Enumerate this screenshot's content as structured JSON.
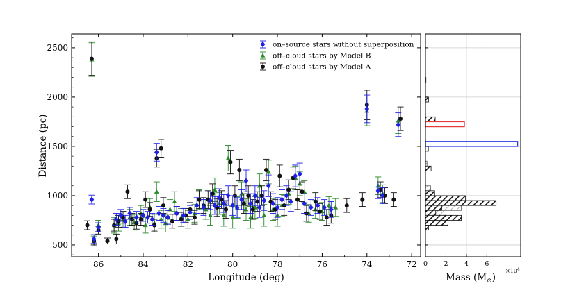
{
  "chart_data": [
    {
      "type": "scatter",
      "xlabel": "Longitude (deg)",
      "ylabel": "Distance (pc)",
      "xlim": [
        87.2,
        71.6
      ],
      "ylim": [
        380,
        2640
      ],
      "xticks": [
        86,
        84,
        82,
        80,
        78,
        76,
        74,
        72
      ],
      "xtick_labels": [
        "86",
        "84",
        "82",
        "80",
        "78",
        "76",
        "74",
        "72"
      ],
      "yticks": [
        500,
        1000,
        1500,
        2000,
        2500
      ],
      "ytick_labels": [
        "500",
        "1000",
        "1500",
        "2000",
        "2500"
      ],
      "legend_position": "top-right",
      "series": [
        {
          "name": "on–source stars without superposition",
          "color": "#1f1fe6",
          "marker": "diamond",
          "points": [
            [
              86.3,
              960,
              45
            ],
            [
              86.2,
              560,
              45
            ],
            [
              86.0,
              680,
              45
            ],
            [
              85.2,
              760,
              60
            ],
            [
              85.0,
              800,
              60
            ],
            [
              84.8,
              740,
              60
            ],
            [
              84.6,
              820,
              60
            ],
            [
              84.3,
              780,
              60
            ],
            [
              84.0,
              800,
              60
            ],
            [
              83.8,
              780,
              60
            ],
            [
              83.6,
              760,
              60
            ],
            [
              83.4,
              1440,
              90
            ],
            [
              83.3,
              820,
              70
            ],
            [
              83.1,
              800,
              70
            ],
            [
              82.9,
              780,
              70
            ],
            [
              82.5,
              820,
              70
            ],
            [
              82.2,
              800,
              70
            ],
            [
              81.9,
              830,
              70
            ],
            [
              81.6,
              900,
              80
            ],
            [
              81.3,
              880,
              80
            ],
            [
              81.0,
              950,
              90
            ],
            [
              80.8,
              900,
              90
            ],
            [
              80.6,
              980,
              90
            ],
            [
              80.4,
              920,
              90
            ],
            [
              80.2,
              1000,
              100
            ],
            [
              80.0,
              900,
              100
            ],
            [
              79.8,
              880,
              100
            ],
            [
              79.6,
              960,
              100
            ],
            [
              79.4,
              1150,
              110
            ],
            [
              79.2,
              920,
              100
            ],
            [
              79.0,
              1000,
              100
            ],
            [
              78.8,
              880,
              100
            ],
            [
              78.6,
              950,
              100
            ],
            [
              78.4,
              1100,
              110
            ],
            [
              78.2,
              920,
              100
            ],
            [
              78.0,
              880,
              100
            ],
            [
              77.8,
              960,
              100
            ],
            [
              77.6,
              1000,
              100
            ],
            [
              77.4,
              940,
              100
            ],
            [
              77.2,
              1200,
              110
            ],
            [
              77.0,
              1220,
              110
            ],
            [
              76.8,
              920,
              100
            ],
            [
              76.5,
              880,
              80
            ],
            [
              76.2,
              900,
              80
            ],
            [
              75.9,
              880,
              80
            ],
            [
              75.6,
              860,
              80
            ],
            [
              74.0,
              1880,
              140
            ],
            [
              73.5,
              1050,
              80
            ],
            [
              73.3,
              1000,
              80
            ],
            [
              72.6,
              1720,
              120
            ]
          ]
        },
        {
          "name": "off–cloud stars by Model B",
          "color": "#2a8a2a",
          "marker": "triangle",
          "points": [
            [
              86.3,
              2380,
              170
            ],
            [
              86.2,
              540,
              50
            ],
            [
              86.0,
              700,
              50
            ],
            [
              85.3,
              700,
              80
            ],
            [
              85.1,
              720,
              80
            ],
            [
              84.9,
              760,
              80
            ],
            [
              84.6,
              780,
              80
            ],
            [
              84.4,
              730,
              80
            ],
            [
              84.1,
              820,
              80
            ],
            [
              83.9,
              700,
              80
            ],
            [
              83.7,
              880,
              90
            ],
            [
              83.5,
              720,
              90
            ],
            [
              83.4,
              1040,
              100
            ],
            [
              83.2,
              760,
              90
            ],
            [
              83.0,
              720,
              90
            ],
            [
              82.8,
              860,
              100
            ],
            [
              82.6,
              940,
              100
            ],
            [
              82.3,
              780,
              90
            ],
            [
              82.0,
              760,
              90
            ],
            [
              81.7,
              820,
              90
            ],
            [
              81.5,
              960,
              100
            ],
            [
              81.2,
              860,
              100
            ],
            [
              81.0,
              800,
              100
            ],
            [
              80.8,
              1060,
              120
            ],
            [
              80.6,
              920,
              110
            ],
            [
              80.4,
              800,
              110
            ],
            [
              80.2,
              1380,
              130
            ],
            [
              80.0,
              780,
              110
            ],
            [
              79.8,
              880,
              110
            ],
            [
              79.6,
              1020,
              120
            ],
            [
              79.4,
              860,
              110
            ],
            [
              79.2,
              780,
              110
            ],
            [
              79.0,
              880,
              110
            ],
            [
              78.8,
              1100,
              120
            ],
            [
              78.6,
              800,
              110
            ],
            [
              78.4,
              1240,
              120
            ],
            [
              78.2,
              860,
              110
            ],
            [
              78.0,
              800,
              110
            ],
            [
              77.8,
              900,
              110
            ],
            [
              77.5,
              1020,
              110
            ],
            [
              77.2,
              1180,
              120
            ],
            [
              77.0,
              1120,
              120
            ],
            [
              76.8,
              1040,
              110
            ],
            [
              76.6,
              820,
              90
            ],
            [
              76.3,
              860,
              90
            ],
            [
              76.0,
              840,
              90
            ],
            [
              75.7,
              900,
              90
            ],
            [
              75.4,
              880,
              90
            ],
            [
              74.0,
              1860,
              150
            ],
            [
              73.5,
              1100,
              90
            ],
            [
              73.3,
              1020,
              90
            ],
            [
              72.6,
              1760,
              130
            ]
          ]
        },
        {
          "name": "off–cloud stars by Model A",
          "color": "#111111",
          "marker": "circle",
          "points": [
            [
              86.5,
              700,
              45
            ],
            [
              86.3,
              2390,
              170
            ],
            [
              86.2,
              540,
              40
            ],
            [
              86.0,
              650,
              40
            ],
            [
              85.6,
              540,
              30
            ],
            [
              85.2,
              560,
              50
            ],
            [
              85.3,
              700,
              60
            ],
            [
              85.1,
              740,
              60
            ],
            [
              84.9,
              780,
              60
            ],
            [
              84.7,
              1040,
              70
            ],
            [
              84.5,
              760,
              60
            ],
            [
              84.3,
              720,
              60
            ],
            [
              84.1,
              760,
              60
            ],
            [
              83.9,
              960,
              80
            ],
            [
              83.7,
              860,
              70
            ],
            [
              83.5,
              700,
              60
            ],
            [
              83.4,
              1380,
              90
            ],
            [
              83.2,
              1480,
              90
            ],
            [
              83.1,
              900,
              80
            ],
            [
              82.9,
              780,
              70
            ],
            [
              82.7,
              740,
              70
            ],
            [
              82.5,
              820,
              70
            ],
            [
              82.3,
              760,
              70
            ],
            [
              82.1,
              800,
              70
            ],
            [
              81.9,
              860,
              70
            ],
            [
              81.7,
              780,
              70
            ],
            [
              81.5,
              960,
              90
            ],
            [
              81.3,
              900,
              80
            ],
            [
              81.1,
              960,
              90
            ],
            [
              80.9,
              1020,
              100
            ],
            [
              80.7,
              880,
              90
            ],
            [
              80.5,
              960,
              90
            ],
            [
              80.3,
              860,
              90
            ],
            [
              80.1,
              1340,
              120
            ],
            [
              79.9,
              1000,
              100
            ],
            [
              79.7,
              1260,
              110
            ],
            [
              79.5,
              920,
              100
            ],
            [
              79.3,
              1000,
              100
            ],
            [
              79.1,
              860,
              100
            ],
            [
              78.9,
              940,
              100
            ],
            [
              78.7,
              1000,
              100
            ],
            [
              78.5,
              1260,
              110
            ],
            [
              78.3,
              940,
              100
            ],
            [
              78.1,
              860,
              100
            ],
            [
              77.9,
              1200,
              110
            ],
            [
              77.7,
              900,
              100
            ],
            [
              77.5,
              1060,
              100
            ],
            [
              77.3,
              1180,
              110
            ],
            [
              77.1,
              960,
              100
            ],
            [
              76.9,
              1040,
              100
            ],
            [
              76.7,
              820,
              80
            ],
            [
              76.3,
              940,
              90
            ],
            [
              76.1,
              840,
              80
            ],
            [
              75.8,
              780,
              80
            ],
            [
              75.6,
              800,
              80
            ],
            [
              74.9,
              900,
              70
            ],
            [
              74.2,
              960,
              70
            ],
            [
              74.0,
              1920,
              150
            ],
            [
              73.4,
              1060,
              80
            ],
            [
              73.2,
              1000,
              80
            ],
            [
              72.8,
              960,
              70
            ],
            [
              72.5,
              1780,
              120
            ]
          ]
        }
      ]
    },
    {
      "type": "bar",
      "orientation": "horizontal",
      "xlabel": "Mass (M",
      "xlabel_symbol": "⊙",
      "xlabel_close": ")",
      "x_multiplier": "×10",
      "x_multiplier_exp": "4",
      "xlim": [
        0,
        9.3
      ],
      "xticks": [
        0,
        2,
        4,
        6
      ],
      "xtick_labels": [
        "0",
        "2",
        "4",
        "6"
      ],
      "ylim": [
        380,
        2640
      ],
      "bin_width": 50,
      "black_hatched": [
        {
          "bin_start": 1950,
          "value": 0.3
        },
        {
          "bin_start": 1750,
          "value": 0.95
        },
        {
          "bin_start": 1250,
          "value": 0.55
        },
        {
          "bin_start": 1000,
          "value": 0.9
        },
        {
          "bin_start": 950,
          "value": 3.9
        },
        {
          "bin_start": 900,
          "value": 6.9
        },
        {
          "bin_start": 850,
          "value": 1.6
        },
        {
          "bin_start": 800,
          "value": 1.0
        },
        {
          "bin_start": 750,
          "value": 3.5
        },
        {
          "bin_start": 700,
          "value": 2.2
        },
        {
          "bin_start": 650,
          "value": 0.3
        }
      ],
      "gray_hatched": [
        {
          "bin_start": 2150,
          "value": 0.05
        },
        {
          "bin_start": 1950,
          "value": 0.2
        },
        {
          "bin_start": 1450,
          "value": 0.3
        },
        {
          "bin_start": 1300,
          "value": 0.15
        },
        {
          "bin_start": 1250,
          "value": 0.25
        },
        {
          "bin_start": 1050,
          "value": 0.5
        },
        {
          "bin_start": 950,
          "value": 1.5
        },
        {
          "bin_start": 900,
          "value": 2.0
        },
        {
          "bin_start": 850,
          "value": 3.5
        },
        {
          "bin_start": 800,
          "value": 2.0
        },
        {
          "bin_start": 750,
          "value": 1.2
        },
        {
          "bin_start": 700,
          "value": 0.5
        }
      ],
      "outlines": [
        {
          "bin_start": 1700,
          "value": 3.8,
          "color": "#e23b3b"
        },
        {
          "bin_start": 1500,
          "value": 9.0,
          "color": "#2a3be0"
        }
      ]
    }
  ]
}
